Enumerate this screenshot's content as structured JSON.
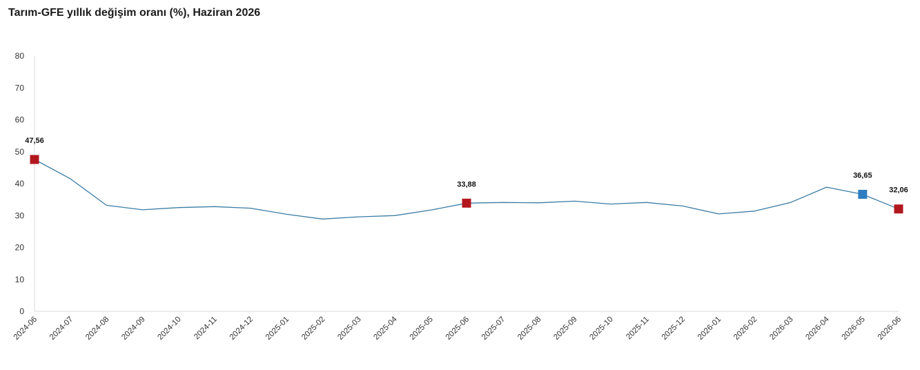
{
  "chart_data": {
    "type": "line",
    "title": "Tarım-GFE yıllık değişim oranı (%), Haziran 2026",
    "xlabel": "",
    "ylabel": "",
    "ylim": [
      0,
      80
    ],
    "yticks": [
      0,
      10,
      20,
      30,
      40,
      50,
      60,
      70,
      80
    ],
    "grid": false,
    "categories": [
      "2024-06",
      "2024-07",
      "2024-08",
      "2024-09",
      "2024-10",
      "2024-11",
      "2024-12",
      "2025-01",
      "2025-02",
      "2025-03",
      "2025-04",
      "2025-05",
      "2025-06",
      "2025-07",
      "2025-08",
      "2025-09",
      "2025-10",
      "2025-11",
      "2025-12",
      "2026-01",
      "2026-02",
      "2026-03",
      "2026-04",
      "2026-05",
      "2026-06"
    ],
    "series": [
      {
        "values": [
          47.56,
          41.5,
          33.2,
          31.8,
          32.5,
          32.8,
          32.3,
          30.4,
          28.9,
          29.6,
          30.0,
          31.7,
          33.88,
          34.1,
          34.0,
          34.5,
          33.6,
          34.1,
          33.0,
          30.5,
          31.4,
          34.1,
          38.9,
          36.65,
          32.06
        ],
        "color": "#3a7ca5"
      }
    ],
    "highlights": [
      {
        "category": "2024-06",
        "value": 47.56,
        "label": "47,56",
        "color": "#b3171e"
      },
      {
        "category": "2025-06",
        "value": 33.88,
        "label": "33,88",
        "color": "#b3171e"
      },
      {
        "category": "2026-05",
        "value": 36.65,
        "label": "36,65",
        "color": "#2e7dc0"
      },
      {
        "category": "2026-06",
        "value": 32.06,
        "label": "32,06",
        "color": "#b3171e"
      }
    ]
  }
}
